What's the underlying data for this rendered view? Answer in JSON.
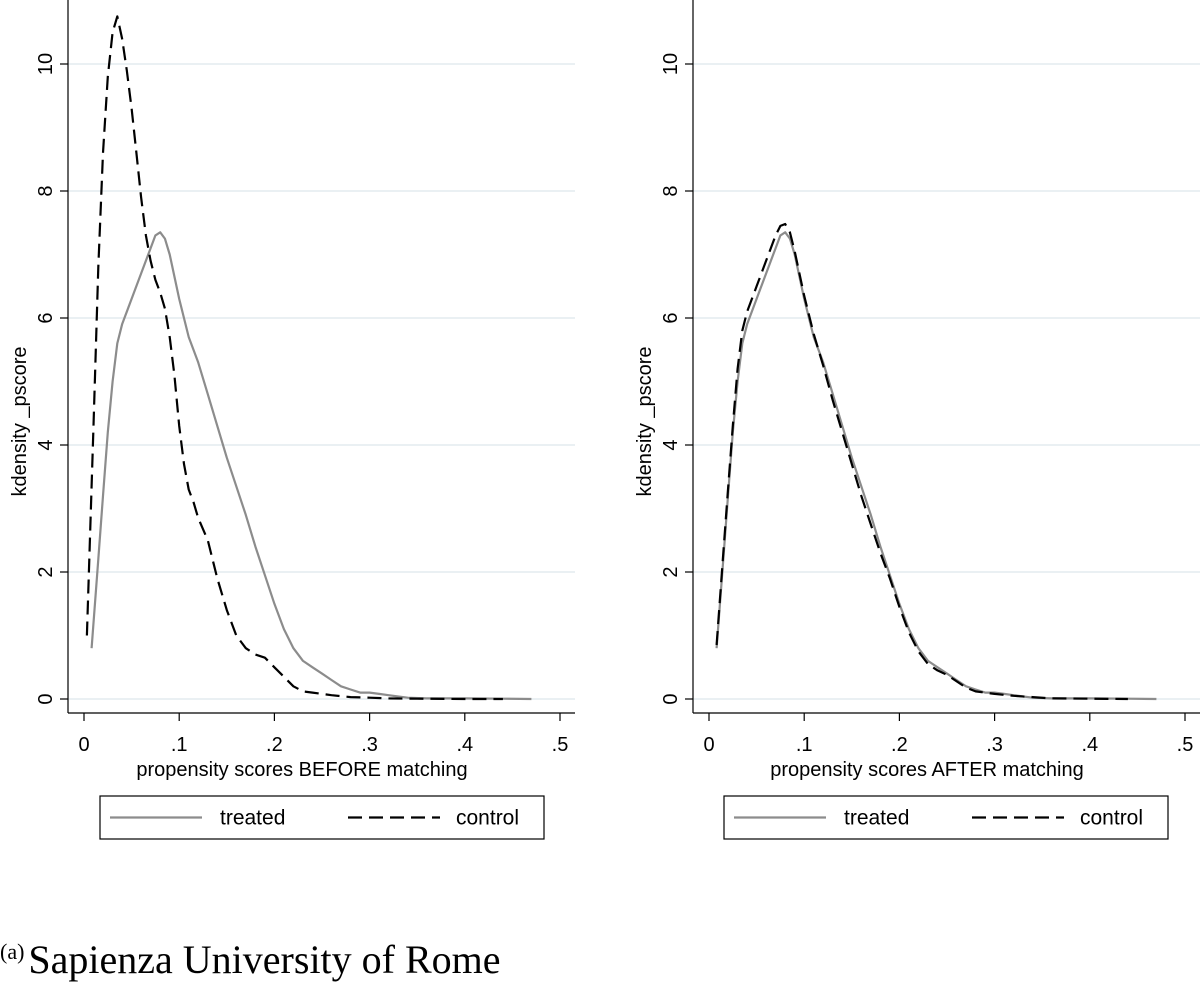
{
  "caption": {
    "label": "(a)",
    "text": "Sapienza University of Rome"
  },
  "colors": {
    "treated": "#8c8c8c",
    "control": "#000000",
    "grid": "#e3ebef",
    "axis": "#000000"
  },
  "chart_data": [
    {
      "type": "line",
      "title": "",
      "xlabel": "propensity scores BEFORE matching",
      "ylabel": "kdensity _pscore",
      "xlim": [
        0,
        0.5
      ],
      "ylim": [
        0,
        11
      ],
      "xticks": [
        0,
        0.1,
        0.2,
        0.3,
        0.4,
        0.5
      ],
      "xtick_labels": [
        "0",
        ".1",
        ".2",
        ".3",
        ".4",
        ".5"
      ],
      "yticks": [
        0,
        2,
        4,
        6,
        8,
        10
      ],
      "ytick_labels": [
        "0",
        "2",
        "4",
        "6",
        "8",
        "10"
      ],
      "grid": true,
      "legend": {
        "placement": "bottom",
        "entries": [
          "treated",
          "control"
        ]
      },
      "series": [
        {
          "name": "treated",
          "style": "solid",
          "x": [
            0.008,
            0.015,
            0.02,
            0.025,
            0.03,
            0.035,
            0.04,
            0.05,
            0.06,
            0.07,
            0.075,
            0.08,
            0.085,
            0.09,
            0.1,
            0.11,
            0.12,
            0.13,
            0.14,
            0.15,
            0.16,
            0.17,
            0.18,
            0.19,
            0.2,
            0.21,
            0.22,
            0.23,
            0.24,
            0.25,
            0.26,
            0.27,
            0.28,
            0.29,
            0.3,
            0.31,
            0.32,
            0.33,
            0.34,
            0.36,
            0.4,
            0.44,
            0.47
          ],
          "y": [
            0.8,
            2.2,
            3.2,
            4.2,
            5.0,
            5.6,
            5.9,
            6.3,
            6.7,
            7.1,
            7.3,
            7.35,
            7.25,
            7.0,
            6.3,
            5.7,
            5.3,
            4.8,
            4.3,
            3.8,
            3.35,
            2.9,
            2.4,
            1.95,
            1.5,
            1.1,
            0.8,
            0.6,
            0.5,
            0.4,
            0.3,
            0.2,
            0.15,
            0.1,
            0.1,
            0.08,
            0.06,
            0.04,
            0.02,
            0.01,
            0.01,
            0.005,
            0.0
          ]
        },
        {
          "name": "control",
          "style": "dashed",
          "x": [
            0.003,
            0.01,
            0.015,
            0.02,
            0.025,
            0.03,
            0.035,
            0.04,
            0.045,
            0.05,
            0.055,
            0.06,
            0.065,
            0.07,
            0.075,
            0.08,
            0.085,
            0.09,
            0.095,
            0.1,
            0.105,
            0.11,
            0.115,
            0.12,
            0.13,
            0.14,
            0.15,
            0.16,
            0.17,
            0.18,
            0.19,
            0.2,
            0.21,
            0.22,
            0.23,
            0.24,
            0.25,
            0.26,
            0.28,
            0.3,
            0.32,
            0.35,
            0.4,
            0.44
          ],
          "y": [
            1.0,
            4.3,
            6.8,
            8.6,
            9.8,
            10.5,
            10.75,
            10.4,
            9.9,
            9.3,
            8.6,
            7.9,
            7.3,
            6.9,
            6.6,
            6.4,
            6.15,
            5.7,
            5.1,
            4.3,
            3.7,
            3.3,
            3.1,
            2.85,
            2.5,
            1.9,
            1.4,
            1.0,
            0.8,
            0.7,
            0.65,
            0.5,
            0.35,
            0.2,
            0.12,
            0.1,
            0.08,
            0.06,
            0.03,
            0.02,
            0.01,
            0.005,
            0.0,
            0.0
          ]
        }
      ]
    },
    {
      "type": "line",
      "title": "",
      "xlabel": "propensity scores AFTER matching",
      "ylabel": "kdensity _pscore",
      "xlim": [
        0,
        0.5
      ],
      "ylim": [
        0,
        11
      ],
      "xticks": [
        0,
        0.1,
        0.2,
        0.3,
        0.4,
        0.5
      ],
      "xtick_labels": [
        "0",
        ".1",
        ".2",
        ".3",
        ".4",
        ".5"
      ],
      "yticks": [
        0,
        2,
        4,
        6,
        8,
        10
      ],
      "ytick_labels": [
        "0",
        "2",
        "4",
        "6",
        "8",
        "10"
      ],
      "grid": true,
      "legend": {
        "placement": "bottom",
        "entries": [
          "treated",
          "control"
        ]
      },
      "series": [
        {
          "name": "treated",
          "style": "solid",
          "x": [
            0.008,
            0.015,
            0.02,
            0.025,
            0.03,
            0.035,
            0.04,
            0.05,
            0.06,
            0.07,
            0.075,
            0.08,
            0.085,
            0.09,
            0.1,
            0.11,
            0.12,
            0.13,
            0.14,
            0.15,
            0.16,
            0.17,
            0.18,
            0.19,
            0.2,
            0.21,
            0.22,
            0.23,
            0.24,
            0.25,
            0.26,
            0.27,
            0.28,
            0.29,
            0.3,
            0.31,
            0.32,
            0.33,
            0.34,
            0.36,
            0.4,
            0.44,
            0.47
          ],
          "y": [
            0.8,
            2.2,
            3.2,
            4.2,
            5.0,
            5.6,
            5.9,
            6.3,
            6.7,
            7.1,
            7.3,
            7.35,
            7.25,
            7.0,
            6.3,
            5.7,
            5.3,
            4.8,
            4.3,
            3.8,
            3.35,
            2.9,
            2.4,
            1.95,
            1.5,
            1.1,
            0.8,
            0.6,
            0.5,
            0.4,
            0.3,
            0.2,
            0.15,
            0.1,
            0.1,
            0.08,
            0.06,
            0.04,
            0.02,
            0.01,
            0.01,
            0.005,
            0.0
          ]
        },
        {
          "name": "control",
          "style": "dashed",
          "x": [
            0.008,
            0.015,
            0.02,
            0.025,
            0.03,
            0.035,
            0.04,
            0.05,
            0.06,
            0.07,
            0.075,
            0.08,
            0.085,
            0.09,
            0.1,
            0.11,
            0.12,
            0.13,
            0.14,
            0.15,
            0.16,
            0.17,
            0.18,
            0.19,
            0.2,
            0.21,
            0.22,
            0.23,
            0.24,
            0.25,
            0.26,
            0.27,
            0.28,
            0.29,
            0.3,
            0.32,
            0.34,
            0.36,
            0.4,
            0.44
          ],
          "y": [
            0.85,
            2.3,
            3.3,
            4.3,
            5.2,
            5.8,
            6.1,
            6.5,
            6.9,
            7.3,
            7.45,
            7.48,
            7.35,
            7.05,
            6.35,
            5.75,
            5.25,
            4.7,
            4.2,
            3.7,
            3.2,
            2.75,
            2.3,
            1.9,
            1.45,
            1.05,
            0.75,
            0.55,
            0.45,
            0.38,
            0.28,
            0.18,
            0.12,
            0.1,
            0.08,
            0.05,
            0.03,
            0.01,
            0.005,
            0.0
          ]
        }
      ]
    }
  ]
}
